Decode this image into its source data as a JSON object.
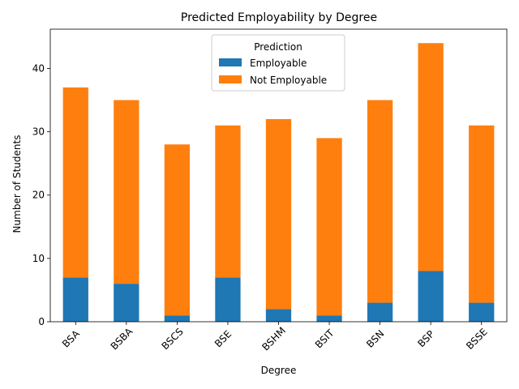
{
  "chart_data": {
    "type": "bar",
    "stacked": true,
    "title": "Predicted Employability by Degree",
    "xlabel": "Degree",
    "ylabel": "Number of Students",
    "categories": [
      "BSA",
      "BSBA",
      "BSCS",
      "BSE",
      "BSHM",
      "BSIT",
      "BSN",
      "BSP",
      "BSSE"
    ],
    "series": [
      {
        "name": "Employable",
        "color": "#1f77b4",
        "values": [
          7,
          6,
          1,
          7,
          2,
          1,
          3,
          8,
          3
        ]
      },
      {
        "name": "Not Employable",
        "color": "#ff7f0e",
        "values": [
          30,
          29,
          27,
          24,
          30,
          28,
          32,
          36,
          28
        ]
      }
    ],
    "ylim": [
      0,
      46.2
    ],
    "yticks": [
      0,
      10,
      20,
      30,
      40
    ],
    "legend": {
      "title": "Prediction",
      "position": "top-center"
    },
    "grid": false
  }
}
